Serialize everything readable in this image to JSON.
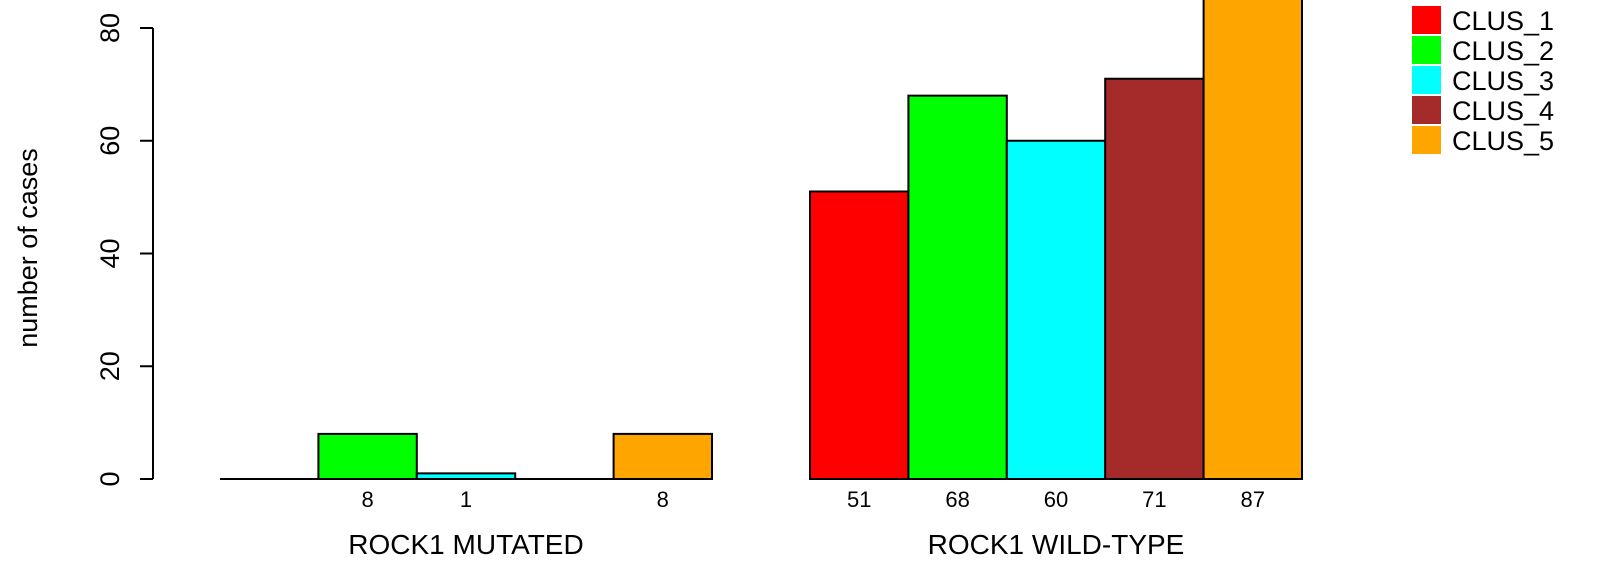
{
  "chart_data": {
    "type": "bar",
    "ylabel": "number of cases",
    "ylim": [
      0,
      80
    ],
    "yticks": [
      0,
      20,
      40,
      60,
      80
    ],
    "groups": [
      "ROCK1 MUTATED",
      "ROCK1 WILD-TYPE"
    ],
    "series": [
      {
        "name": "CLUS_1",
        "color": "#FF0000",
        "values": [
          0,
          51
        ]
      },
      {
        "name": "CLUS_2",
        "color": "#00FF00",
        "values": [
          8,
          68
        ]
      },
      {
        "name": "CLUS_3",
        "color": "#00FFFF",
        "values": [
          1,
          60
        ]
      },
      {
        "name": "CLUS_4",
        "color": "#A52A2A",
        "values": [
          0,
          71
        ]
      },
      {
        "name": "CLUS_5",
        "color": "#FFA500",
        "values": [
          8,
          87
        ]
      }
    ],
    "legend_position": "top-right",
    "grid": false
  }
}
